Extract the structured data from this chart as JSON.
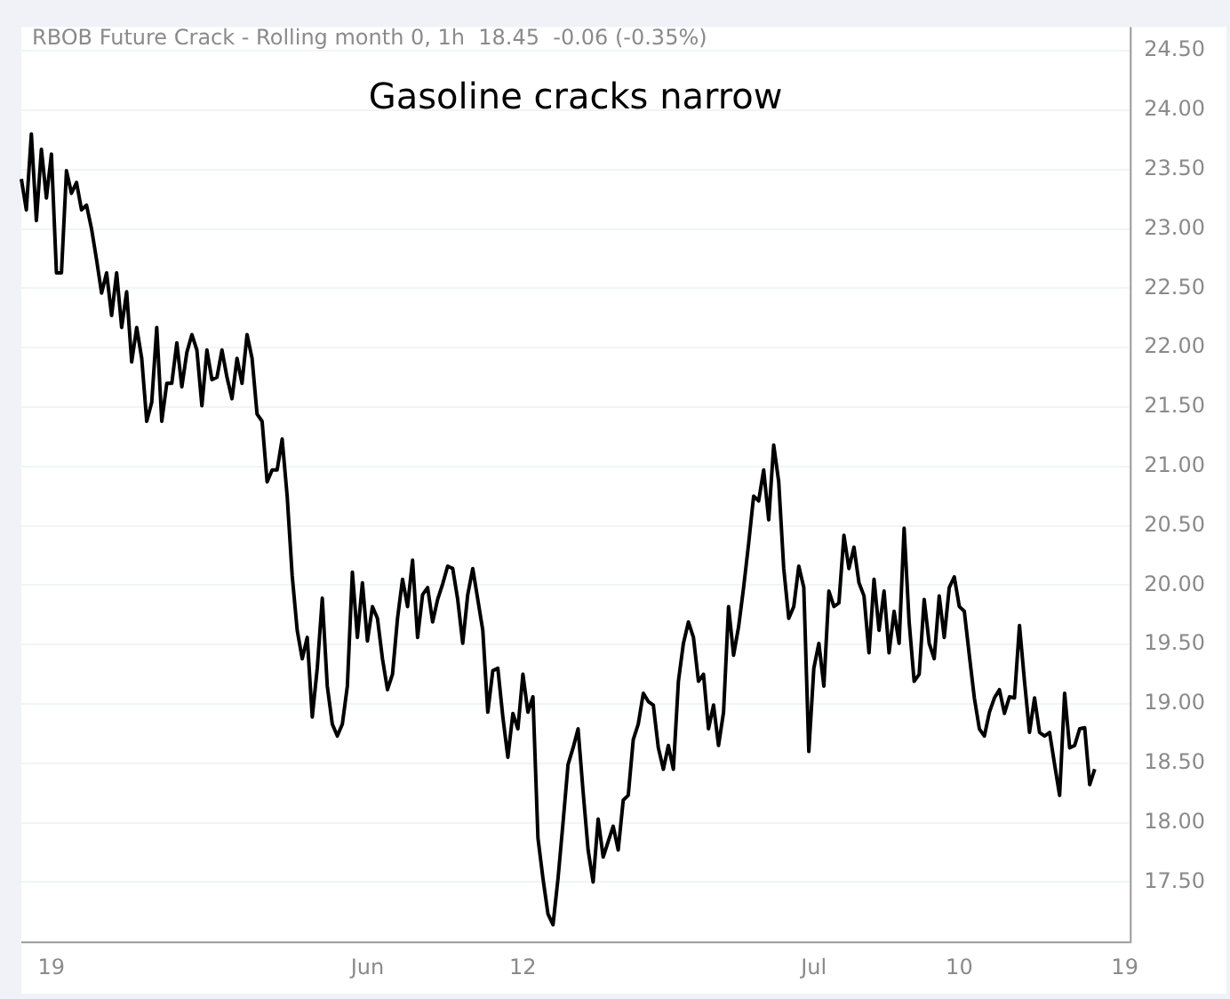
{
  "chart_data": {
    "type": "line",
    "title": "Gasoline cracks narrow",
    "subtitle": "RBOB Future Crack - Rolling month 0, 1h  18.45  -0.06 (-0.35%)",
    "categories": [
      null,
      null,
      null,
      null,
      null,
      null,
      "19",
      null,
      null,
      null,
      null,
      null,
      null,
      null,
      null,
      null,
      null,
      null,
      null,
      null,
      null,
      null,
      null,
      null,
      null,
      null,
      null,
      null,
      null,
      null,
      null,
      null,
      null,
      null,
      null,
      null,
      null,
      null,
      null,
      null,
      null,
      null,
      null,
      null,
      null,
      null,
      null,
      null,
      null,
      null,
      null,
      null,
      null,
      null,
      null,
      null,
      null,
      null,
      null,
      null,
      null,
      null,
      null,
      null,
      null,
      null,
      null,
      null,
      null,
      "Jun",
      null,
      null,
      null,
      null,
      null,
      null,
      null,
      null,
      null,
      null,
      null,
      null,
      null,
      null,
      null,
      null,
      null,
      null,
      null,
      null,
      null,
      null,
      null,
      null,
      null,
      null,
      null,
      null,
      null,
      null,
      "12",
      null,
      null,
      null,
      null,
      null,
      null,
      null,
      null,
      null,
      null,
      null,
      null,
      null,
      null,
      null,
      null,
      null,
      null,
      null,
      null,
      null,
      null,
      null,
      null,
      null,
      null,
      null,
      null,
      null,
      null,
      null,
      null,
      null,
      null,
      null,
      null,
      null,
      null,
      null,
      null,
      null,
      null,
      null,
      null,
      null,
      null,
      null,
      null,
      null,
      null,
      null,
      null,
      null,
      null,
      null,
      null,
      null,
      "Jul",
      null,
      null,
      null,
      null,
      null,
      null,
      null,
      null,
      null,
      null,
      null,
      null,
      null,
      null,
      null,
      null,
      null,
      null,
      null,
      null,
      null,
      null,
      null,
      null,
      null,
      null,
      null,
      null,
      "10",
      null,
      null,
      null,
      null,
      null,
      null,
      null,
      null,
      null,
      null,
      null,
      null,
      null,
      null,
      null,
      null,
      null,
      null,
      null,
      null,
      null,
      null,
      null,
      null,
      null,
      null,
      null,
      null,
      null,
      null,
      null,
      null,
      "19",
      null
    ],
    "series": [
      {
        "color": "#000000",
        "values": [
          23.42,
          23.16,
          23.8,
          23.07,
          23.67,
          23.26,
          23.63,
          22.63,
          22.63,
          23.49,
          23.3,
          23.39,
          23.16,
          23.2,
          23.0,
          22.74,
          22.46,
          22.63,
          22.27,
          22.63,
          22.17,
          22.47,
          21.88,
          22.17,
          21.91,
          21.38,
          21.54,
          22.17,
          21.38,
          21.7,
          21.7,
          22.04,
          21.67,
          21.96,
          22.11,
          21.98,
          21.51,
          21.98,
          21.73,
          21.75,
          21.98,
          21.75,
          21.57,
          21.91,
          21.7,
          22.11,
          21.91,
          21.44,
          21.38,
          20.87,
          20.97,
          20.97,
          21.23,
          20.75,
          20.08,
          19.62,
          19.38,
          19.56,
          18.89,
          19.3,
          19.89,
          19.15,
          18.83,
          18.73,
          18.83,
          19.15,
          20.11,
          19.56,
          20.02,
          19.53,
          19.82,
          19.72,
          19.38,
          19.12,
          19.25,
          19.72,
          20.05,
          19.82,
          20.21,
          19.56,
          19.92,
          19.98,
          19.69,
          19.88,
          20.01,
          20.16,
          20.14,
          19.88,
          19.51,
          19.92,
          20.14,
          19.88,
          19.62,
          18.93,
          19.28,
          19.3,
          18.89,
          18.55,
          18.92,
          18.79,
          19.25,
          18.93,
          19.06,
          17.87,
          17.53,
          17.23,
          17.14,
          17.53,
          18.0,
          18.49,
          18.63,
          18.79,
          18.26,
          17.77,
          17.5,
          18.03,
          17.71,
          17.84,
          17.97,
          17.77,
          18.19,
          18.23,
          18.7,
          18.83,
          19.09,
          19.02,
          18.99,
          18.63,
          18.45,
          18.65,
          18.45,
          19.19,
          19.51,
          19.69,
          19.56,
          19.19,
          19.25,
          18.79,
          18.99,
          18.65,
          18.93,
          19.82,
          19.41,
          19.65,
          19.98,
          20.35,
          20.75,
          20.71,
          20.97,
          20.55,
          21.18,
          20.87,
          20.14,
          19.72,
          19.82,
          20.16,
          19.98,
          18.6,
          19.3,
          19.51,
          19.15,
          19.95,
          19.82,
          19.85,
          20.42,
          20.14,
          20.32,
          20.02,
          19.91,
          19.43,
          20.05,
          19.62,
          19.95,
          19.43,
          19.78,
          19.51,
          20.48,
          19.69,
          19.19,
          19.25,
          19.88,
          19.51,
          19.38,
          19.91,
          19.56,
          19.98,
          20.07,
          19.82,
          19.78,
          19.41,
          19.05,
          18.79,
          18.73,
          18.93,
          19.05,
          19.12,
          18.92,
          19.06,
          19.05,
          19.66,
          19.19,
          18.76,
          19.05,
          18.76,
          18.73,
          18.76,
          18.49,
          18.23,
          19.09,
          18.63,
          18.65,
          18.79,
          18.8,
          18.32,
          18.45,
          null,
          null,
          null,
          null,
          null,
          null,
          null
        ]
      }
    ],
    "ylim": [
      17.0,
      24.7
    ],
    "yticks": [
      {
        "value": 17.5,
        "label": "17.50"
      },
      {
        "value": 18,
        "label": "18.00"
      },
      {
        "value": 18.5,
        "label": "18.50"
      },
      {
        "value": 19,
        "label": "19.00"
      },
      {
        "value": 19.5,
        "label": "19.50"
      },
      {
        "value": 20,
        "label": "20.00"
      },
      {
        "value": 20.5,
        "label": "20.50"
      },
      {
        "value": 21,
        "label": "21.00"
      },
      {
        "value": 21.5,
        "label": "21.50"
      },
      {
        "value": 22,
        "label": "22.00"
      },
      {
        "value": 22.5,
        "label": "22.50"
      },
      {
        "value": 23,
        "label": "23.00"
      },
      {
        "value": 23.5,
        "label": "23.50"
      },
      {
        "value": 24,
        "label": "24.00"
      },
      {
        "value": 24.5,
        "label": "24.50"
      }
    ],
    "grid": "y",
    "legend": false,
    "marker": "none",
    "line_style": "solid"
  }
}
